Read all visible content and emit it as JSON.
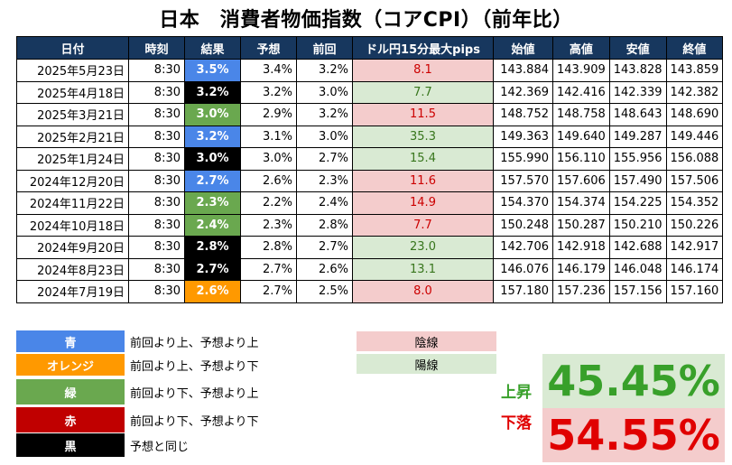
{
  "title": "日本　消費者物価指数（コアCPI）（前年比）",
  "table": {
    "headers": [
      "日付",
      "時刻",
      "結果",
      "予想",
      "前回",
      "ドル円15分最大pips",
      "始値",
      "高値",
      "安値",
      "終値"
    ],
    "rows": [
      {
        "date": "2025年5月23日",
        "time": "8:30",
        "result": "3.5%",
        "result_color": "blue",
        "forecast": "3.4%",
        "previous": "3.2%",
        "pips": "8.1",
        "pips_type": "neg",
        "open": "143.884",
        "high": "143.909",
        "low": "143.828",
        "close": "143.859"
      },
      {
        "date": "2025年4月18日",
        "time": "8:30",
        "result": "3.2%",
        "result_color": "black",
        "forecast": "3.2%",
        "previous": "3.0%",
        "pips": "7.7",
        "pips_type": "pos",
        "open": "142.369",
        "high": "142.416",
        "low": "142.339",
        "close": "142.382"
      },
      {
        "date": "2025年3月21日",
        "time": "8:30",
        "result": "3.0%",
        "result_color": "green",
        "forecast": "2.9%",
        "previous": "3.2%",
        "pips": "11.5",
        "pips_type": "neg",
        "open": "148.752",
        "high": "148.758",
        "low": "148.643",
        "close": "148.690"
      },
      {
        "date": "2025年2月21日",
        "time": "8:30",
        "result": "3.2%",
        "result_color": "blue",
        "forecast": "3.1%",
        "previous": "3.0%",
        "pips": "35.3",
        "pips_type": "pos",
        "open": "149.363",
        "high": "149.640",
        "low": "149.287",
        "close": "149.446"
      },
      {
        "date": "2025年1月24日",
        "time": "8:30",
        "result": "3.0%",
        "result_color": "black",
        "forecast": "3.0%",
        "previous": "2.7%",
        "pips": "15.4",
        "pips_type": "pos",
        "open": "155.990",
        "high": "156.110",
        "low": "155.956",
        "close": "156.088"
      },
      {
        "date": "2024年12月20日",
        "time": "8:30",
        "result": "2.7%",
        "result_color": "blue",
        "forecast": "2.6%",
        "previous": "2.3%",
        "pips": "11.6",
        "pips_type": "neg",
        "open": "157.570",
        "high": "157.606",
        "low": "157.490",
        "close": "157.506"
      },
      {
        "date": "2024年11月22日",
        "time": "8:30",
        "result": "2.3%",
        "result_color": "green",
        "forecast": "2.2%",
        "previous": "2.4%",
        "pips": "14.9",
        "pips_type": "neg",
        "open": "154.370",
        "high": "154.374",
        "low": "154.225",
        "close": "154.352"
      },
      {
        "date": "2024年10月18日",
        "time": "8:30",
        "result": "2.4%",
        "result_color": "green",
        "forecast": "2.3%",
        "previous": "2.8%",
        "pips": "7.7",
        "pips_type": "neg",
        "open": "150.248",
        "high": "150.287",
        "low": "150.210",
        "close": "150.226"
      },
      {
        "date": "2024年9月20日",
        "time": "8:30",
        "result": "2.8%",
        "result_color": "black",
        "forecast": "2.8%",
        "previous": "2.7%",
        "pips": "23.0",
        "pips_type": "pos",
        "open": "142.706",
        "high": "142.918",
        "low": "142.688",
        "close": "142.917"
      },
      {
        "date": "2024年8月23日",
        "time": "8:30",
        "result": "2.7%",
        "result_color": "black",
        "forecast": "2.7%",
        "previous": "2.6%",
        "pips": "13.1",
        "pips_type": "pos",
        "open": "146.076",
        "high": "146.179",
        "low": "146.048",
        "close": "146.174"
      },
      {
        "date": "2024年7月19日",
        "time": "8:30",
        "result": "2.6%",
        "result_color": "orange",
        "forecast": "2.7%",
        "previous": "2.5%",
        "pips": "8.0",
        "pips_type": "neg",
        "open": "157.180",
        "high": "157.236",
        "low": "157.156",
        "close": "157.160"
      }
    ]
  },
  "legend": [
    {
      "label": "青",
      "color": "#4a86e8",
      "desc": "前回より上、予想より上"
    },
    {
      "label": "オレンジ",
      "color": "#ff9900",
      "desc": "前回より上、予想より下"
    },
    {
      "label": "緑",
      "color": "#6aa84f",
      "desc": "前回より下、予想より上"
    },
    {
      "label": "赤",
      "color": "#c00000",
      "desc": "前回より下、予想より下"
    },
    {
      "label": "黒",
      "color": "#000000",
      "desc": "予想と同じ"
    }
  ],
  "candle_legend": {
    "bearish": "陰線",
    "bullish": "陽線",
    "bearish_color": "#f4cccc",
    "bullish_color": "#d9ead3"
  },
  "stats": {
    "up_label": "上昇",
    "up_value": "45.45%",
    "up_color": "#38a02a",
    "up_bg": "#d9ead3",
    "down_label": "下落",
    "down_value": "54.55%",
    "down_color": "#e00000",
    "down_bg": "#f4cccc"
  }
}
